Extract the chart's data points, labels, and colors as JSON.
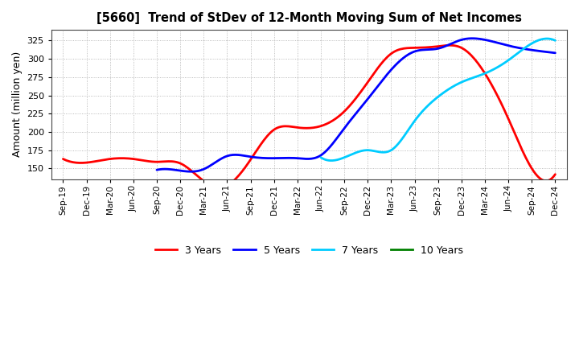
{
  "title": "[5660]  Trend of StDev of 12-Month Moving Sum of Net Incomes",
  "ylabel": "Amount (million yen)",
  "background_color": "#FFFFFF",
  "grid_color": "#AAAAAA",
  "plot_bg_color": "#FFFFFF",
  "ylim": [
    135,
    340
  ],
  "yticks": [
    150,
    175,
    200,
    225,
    250,
    275,
    300,
    325
  ],
  "x_labels": [
    "Sep-19",
    "Dec-19",
    "Mar-20",
    "Jun-20",
    "Sep-20",
    "Dec-20",
    "Mar-21",
    "Jun-21",
    "Sep-21",
    "Dec-21",
    "Mar-22",
    "Jun-22",
    "Sep-22",
    "Dec-22",
    "Mar-23",
    "Jun-23",
    "Sep-23",
    "Dec-23",
    "Mar-24",
    "Jun-24",
    "Sep-24",
    "Dec-24"
  ],
  "series": {
    "3 Years": {
      "color": "#FF0000",
      "linewidth": 2.0,
      "values": [
        163,
        158,
        163,
        163,
        159,
        157,
        133,
        127,
        162,
        203,
        206,
        208,
        228,
        268,
        307,
        315,
        317,
        315,
        280,
        218,
        150,
        142
      ]
    },
    "5 Years": {
      "color": "#0000FF",
      "linewidth": 2.0,
      "values": [
        null,
        null,
        null,
        null,
        148,
        147,
        149,
        167,
        166,
        164,
        164,
        168,
        205,
        245,
        285,
        310,
        314,
        326,
        326,
        318,
        312,
        308
      ]
    },
    "7 Years": {
      "color": "#00CCFF",
      "linewidth": 2.0,
      "values": [
        null,
        null,
        null,
        null,
        null,
        null,
        null,
        null,
        null,
        null,
        null,
        165,
        165,
        175,
        175,
        215,
        248,
        268,
        280,
        298,
        321,
        325
      ]
    },
    "10 Years": {
      "color": "#008000",
      "linewidth": 2.0,
      "values": [
        null,
        null,
        null,
        null,
        null,
        null,
        null,
        null,
        null,
        null,
        null,
        null,
        null,
        null,
        null,
        null,
        null,
        null,
        null,
        null,
        null,
        null
      ]
    }
  },
  "legend_labels": [
    "3 Years",
    "5 Years",
    "7 Years",
    "10 Years"
  ],
  "legend_colors": [
    "#FF0000",
    "#0000FF",
    "#00CCFF",
    "#008000"
  ]
}
